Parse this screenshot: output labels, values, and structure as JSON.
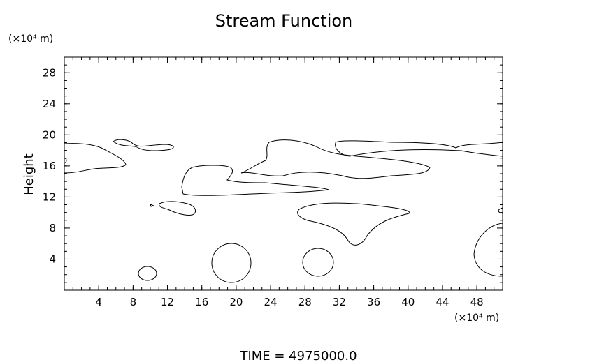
{
  "chart_data": {
    "type": "contour",
    "title": "Stream Function",
    "y_unit": "(×10⁴ m)",
    "x_unit": "(×10⁴ m)",
    "ylabel": "Height",
    "footer": "TIME  =  4975000.0",
    "xlim": [
      0,
      51
    ],
    "ylim": [
      0,
      30
    ],
    "xticks": [
      4,
      8,
      12,
      16,
      20,
      24,
      28,
      32,
      36,
      40,
      44,
      48
    ],
    "yticks": [
      4,
      8,
      12,
      16,
      20,
      24,
      28
    ],
    "minor_step": 1
  }
}
